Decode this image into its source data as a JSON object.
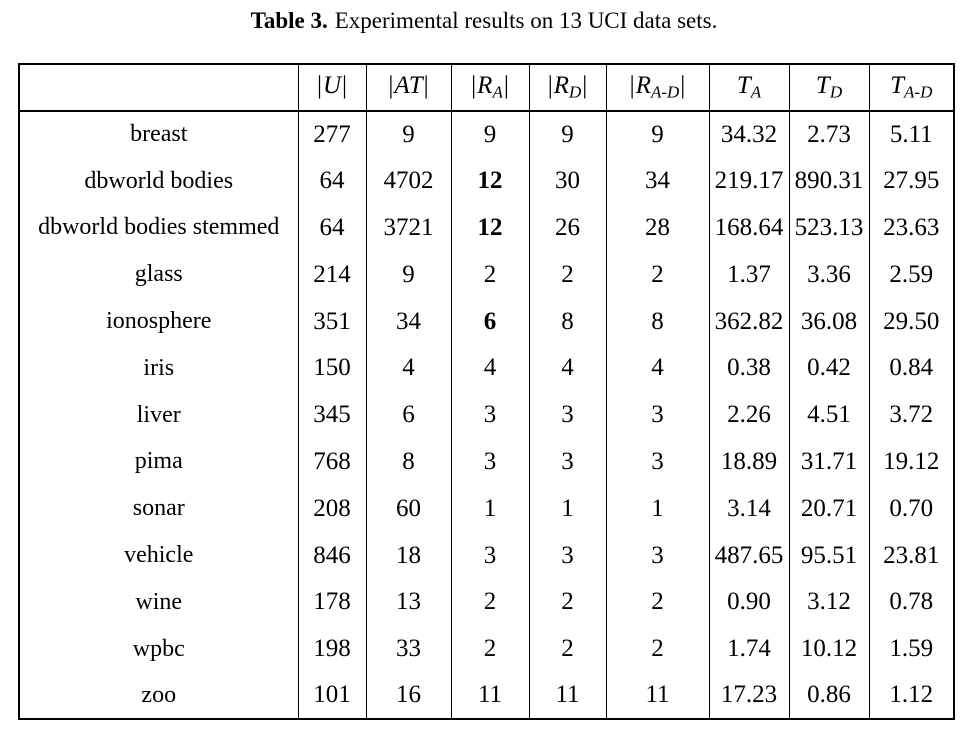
{
  "title": {
    "label": "Table 3.",
    "text": "Experimental results on 13 UCI data sets."
  },
  "table": {
    "columns": [
      {
        "key": "name",
        "pre": "",
        "main": "",
        "sub": "",
        "post": ""
      },
      {
        "key": "U",
        "pre": "|",
        "main": "U",
        "sub": "",
        "post": "|"
      },
      {
        "key": "AT",
        "pre": "|",
        "main": "AT",
        "sub": "",
        "post": "|"
      },
      {
        "key": "RA",
        "pre": "|",
        "main": "R",
        "sub": "A",
        "post": "|"
      },
      {
        "key": "RD",
        "pre": "|",
        "main": "R",
        "sub": "D",
        "post": "|"
      },
      {
        "key": "RAD",
        "pre": "|",
        "main": "R",
        "sub": "A-D",
        "post": "|"
      },
      {
        "key": "TA",
        "pre": "",
        "main": "T",
        "sub": "A",
        "post": ""
      },
      {
        "key": "TD",
        "pre": "",
        "main": "T",
        "sub": "D",
        "post": ""
      },
      {
        "key": "TAD",
        "pre": "",
        "main": "T",
        "sub": "A-D",
        "post": ""
      }
    ],
    "rows": [
      {
        "name": "breast",
        "values": [
          "277",
          "9",
          "9",
          "9",
          "9",
          "34.32",
          "2.73",
          "5.11"
        ],
        "bold": []
      },
      {
        "name": "dbworld bodies",
        "values": [
          "64",
          "4702",
          "12",
          "30",
          "34",
          "219.17",
          "890.31",
          "27.95"
        ],
        "bold": [
          2
        ]
      },
      {
        "name": "dbworld bodies stemmed",
        "values": [
          "64",
          "3721",
          "12",
          "26",
          "28",
          "168.64",
          "523.13",
          "23.63"
        ],
        "bold": [
          2
        ]
      },
      {
        "name": "glass",
        "values": [
          "214",
          "9",
          "2",
          "2",
          "2",
          "1.37",
          "3.36",
          "2.59"
        ],
        "bold": []
      },
      {
        "name": "ionosphere",
        "values": [
          "351",
          "34",
          "6",
          "8",
          "8",
          "362.82",
          "36.08",
          "29.50"
        ],
        "bold": [
          2
        ]
      },
      {
        "name": "iris",
        "values": [
          "150",
          "4",
          "4",
          "4",
          "4",
          "0.38",
          "0.42",
          "0.84"
        ],
        "bold": []
      },
      {
        "name": "liver",
        "values": [
          "345",
          "6",
          "3",
          "3",
          "3",
          "2.26",
          "4.51",
          "3.72"
        ],
        "bold": []
      },
      {
        "name": "pima",
        "values": [
          "768",
          "8",
          "3",
          "3",
          "3",
          "18.89",
          "31.71",
          "19.12"
        ],
        "bold": []
      },
      {
        "name": "sonar",
        "values": [
          "208",
          "60",
          "1",
          "1",
          "1",
          "3.14",
          "20.71",
          "0.70"
        ],
        "bold": []
      },
      {
        "name": "vehicle",
        "values": [
          "846",
          "18",
          "3",
          "3",
          "3",
          "487.65",
          "95.51",
          "23.81"
        ],
        "bold": []
      },
      {
        "name": "wine",
        "values": [
          "178",
          "13",
          "2",
          "2",
          "2",
          "0.90",
          "3.12",
          "0.78"
        ],
        "bold": []
      },
      {
        "name": "wpbc",
        "values": [
          "198",
          "33",
          "2",
          "2",
          "2",
          "1.74",
          "10.12",
          "1.59"
        ],
        "bold": []
      },
      {
        "name": "zoo",
        "values": [
          "101",
          "16",
          "11",
          "11",
          "11",
          "17.23",
          "0.86",
          "1.12"
        ],
        "bold": []
      }
    ]
  }
}
